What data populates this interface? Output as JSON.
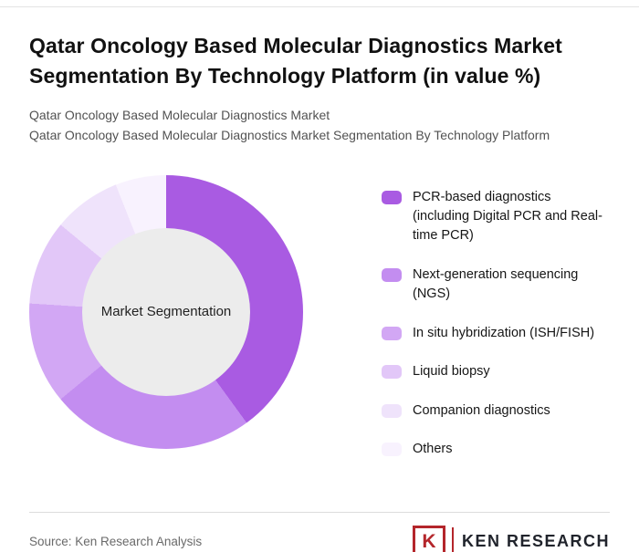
{
  "header": {
    "title": "Qatar Oncology Based Molecular Diagnostics Market Segmentation By Technology Platform (in value %)",
    "subtitle_line1": "Qatar Oncology Based Molecular Diagnostics Market",
    "subtitle_line2": "Qatar Oncology Based Molecular Diagnostics Market Segmentation By Technology Platform"
  },
  "chart_data": {
    "type": "pie",
    "donut": true,
    "title": "Qatar Oncology Based Molecular Diagnostics Market Segmentation By Technology Platform (in value %)",
    "center_label": "Market Segmentation",
    "legend_position": "right",
    "categories": [
      "PCR-based diagnostics (including Digital PCR and Real-time PCR)",
      "Next-generation sequencing (NGS)",
      "In situ hybridization (ISH/FISH)",
      "Liquid biopsy",
      "Companion diagnostics",
      "Others"
    ],
    "values": [
      40,
      24,
      12,
      10,
      8,
      6
    ],
    "values_note": "estimated from arc angles; no numeric labels shown in image",
    "colors": [
      "#a95be2",
      "#c38df0",
      "#d2a7f4",
      "#e2c7f8",
      "#efe3fb",
      "#f8f2fe"
    ]
  },
  "legend": {
    "items": [
      {
        "label": "PCR-based diagnostics (including Digital PCR and Real-time PCR)",
        "color": "#a95be2"
      },
      {
        "label": "Next-generation sequencing (NGS)",
        "color": "#c38df0"
      },
      {
        "label": "In situ hybridization (ISH/FISH)",
        "color": "#d2a7f4"
      },
      {
        "label": "Liquid biopsy",
        "color": "#e2c7f8"
      },
      {
        "label": "Companion diagnostics",
        "color": "#efe3fb"
      },
      {
        "label": "Others",
        "color": "#f8f2fe"
      }
    ]
  },
  "footer": {
    "source": "Source: Ken Research Analysis",
    "logo_mark": "K",
    "logo_text": "KEN RESEARCH"
  }
}
